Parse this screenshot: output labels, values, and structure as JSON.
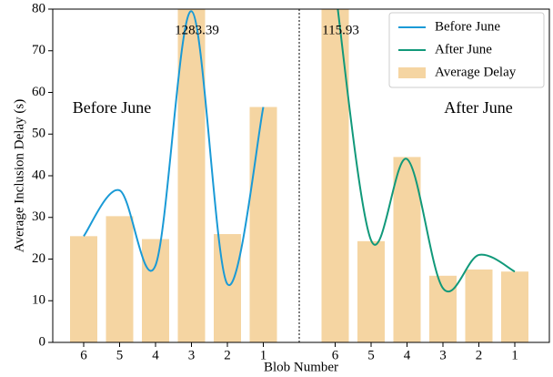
{
  "chart_data": {
    "type": "bar-line",
    "xlabel": "Blob Number",
    "ylabel": "Average Inclusion Delay (s)",
    "categories": [
      "6",
      "5",
      "4",
      "3",
      "2",
      "1",
      null,
      "6",
      "5",
      "4",
      "3",
      "2",
      "1"
    ],
    "bars": {
      "name": "Average Delay",
      "color": "#f5d5a2",
      "values": [
        25.5,
        30.3,
        24.8,
        1283.39,
        26,
        56.5,
        null,
        115.93,
        24.3,
        44.5,
        16,
        17.5,
        17
      ],
      "value_labels": [
        null,
        null,
        null,
        "1283.39",
        null,
        null,
        null,
        "115.93",
        null,
        null,
        null,
        null,
        null
      ]
    },
    "series": [
      {
        "name": "Before June",
        "color": "#1a9ad6",
        "values": [
          25.5,
          36.5,
          18.5,
          79.5,
          14,
          56.5,
          null,
          null,
          null,
          null,
          null,
          null,
          null
        ]
      },
      {
        "name": "After June",
        "color": "#11997a",
        "values": [
          null,
          null,
          null,
          null,
          null,
          null,
          null,
          85,
          24.5,
          44,
          13,
          21,
          17
        ]
      }
    ],
    "annotations": [
      "Before June",
      "After June"
    ],
    "ylim": [
      0,
      80
    ],
    "yticks": [
      0,
      10,
      20,
      30,
      40,
      50,
      60,
      70,
      80
    ],
    "legend": "upper right"
  }
}
